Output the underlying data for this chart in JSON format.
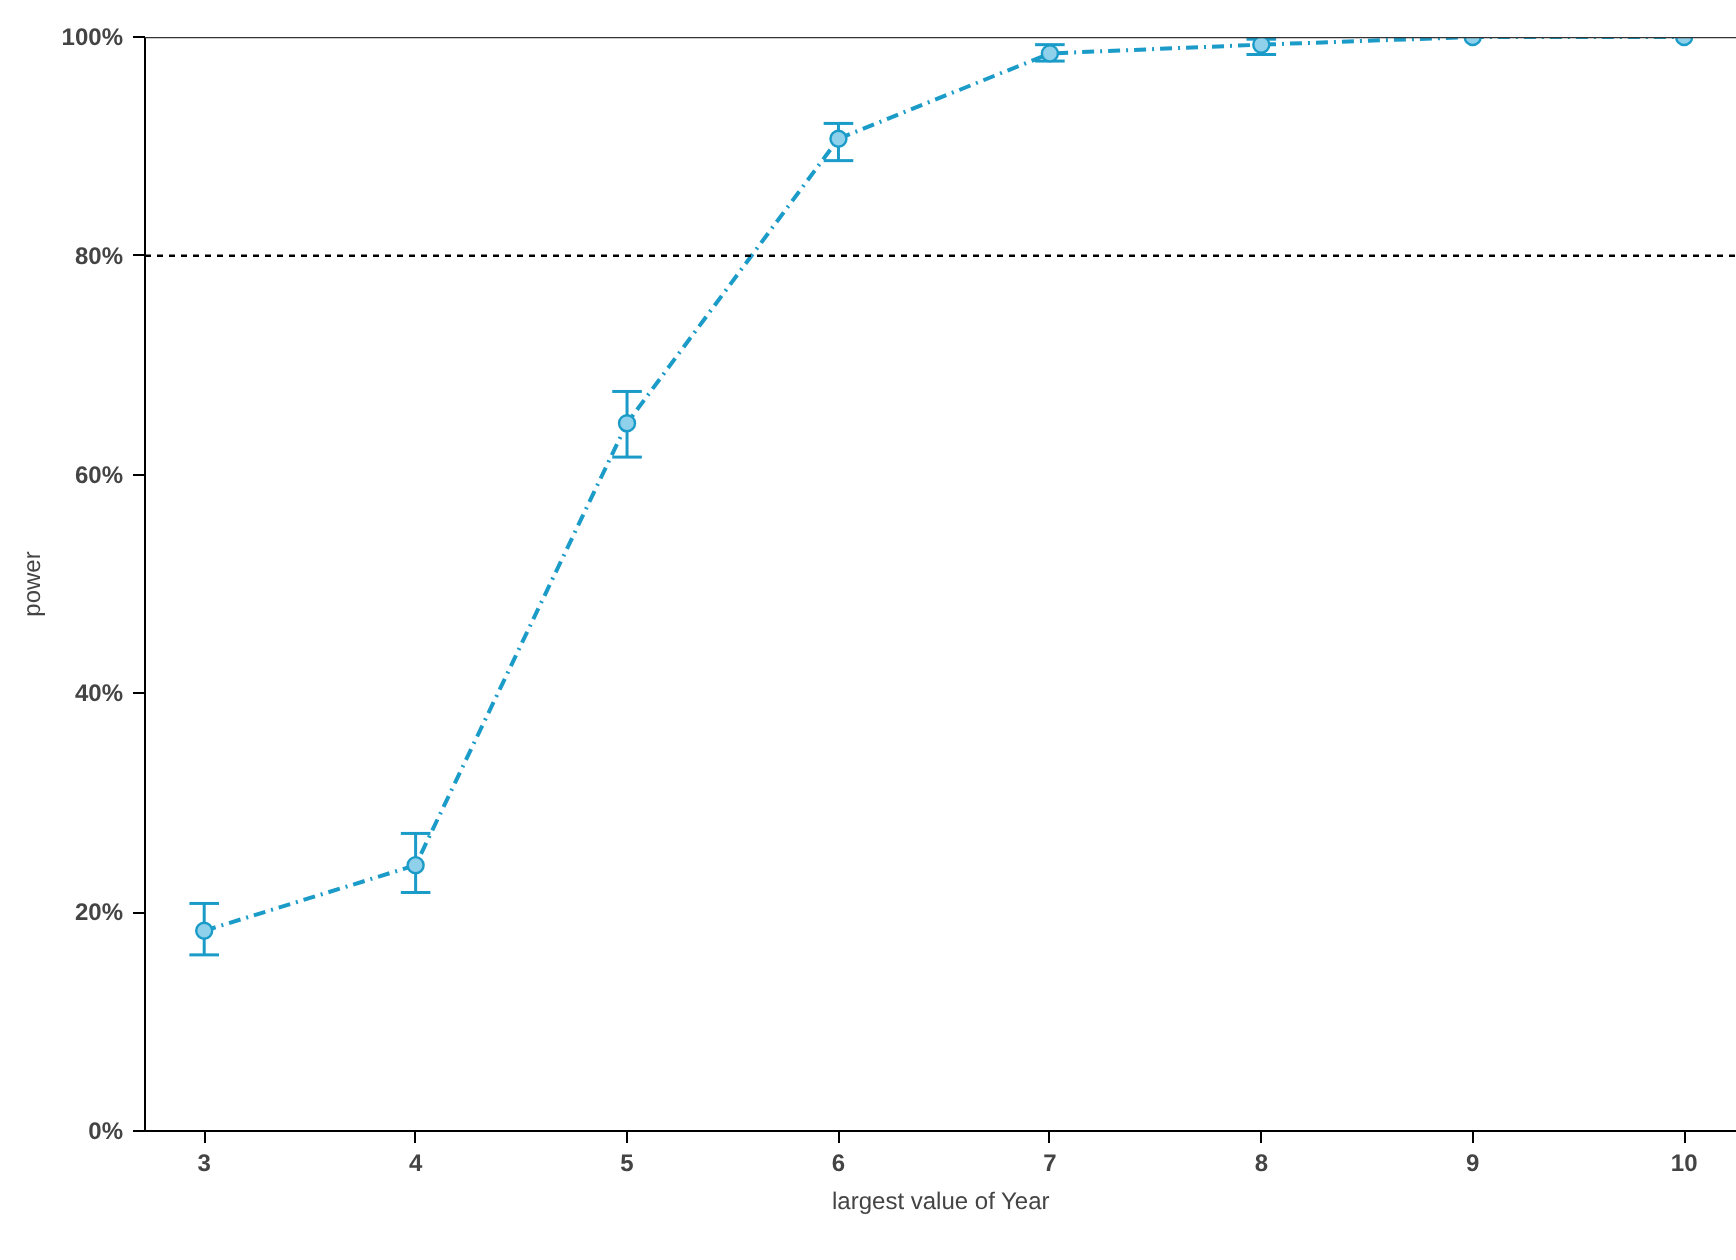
{
  "chart_data": {
    "type": "line",
    "xlabel": "largest value of Year",
    "ylabel": "power",
    "x": [
      3,
      4,
      5,
      6,
      7,
      8,
      9,
      10
    ],
    "series": [
      {
        "color": "#1a9bc8",
        "values": [
          18.3,
          24.3,
          64.7,
          90.7,
          98.5,
          99.3,
          100,
          100
        ],
        "errors": [
          [
            16.1,
            20.8
          ],
          [
            21.8,
            27.2
          ],
          [
            61.6,
            67.6
          ],
          [
            88.7,
            92.1
          ],
          [
            97.8,
            99.3
          ],
          [
            98.4,
            99.8
          ],
          null,
          null
        ]
      }
    ],
    "xlim": [
      2.72,
      10.25
    ],
    "xticks": [
      3,
      4,
      5,
      6,
      7,
      8,
      9,
      10
    ],
    "ylim": [
      0,
      100
    ],
    "yticks": [
      {
        "value": 0,
        "label": "0%"
      },
      {
        "value": 20,
        "label": "20%"
      },
      {
        "value": 40,
        "label": "40%"
      },
      {
        "value": 60,
        "label": "60%"
      },
      {
        "value": 80,
        "label": "80%"
      },
      {
        "value": 100,
        "label": "100%"
      }
    ],
    "ref_lines": [
      {
        "axis": "y",
        "value": 100,
        "color": "#333333",
        "line_style": "solid"
      },
      {
        "axis": "y",
        "value": 80,
        "color": "#000000",
        "line_style": "dotted"
      }
    ],
    "grid": false,
    "marker": "circle",
    "line_style": "dashed"
  }
}
